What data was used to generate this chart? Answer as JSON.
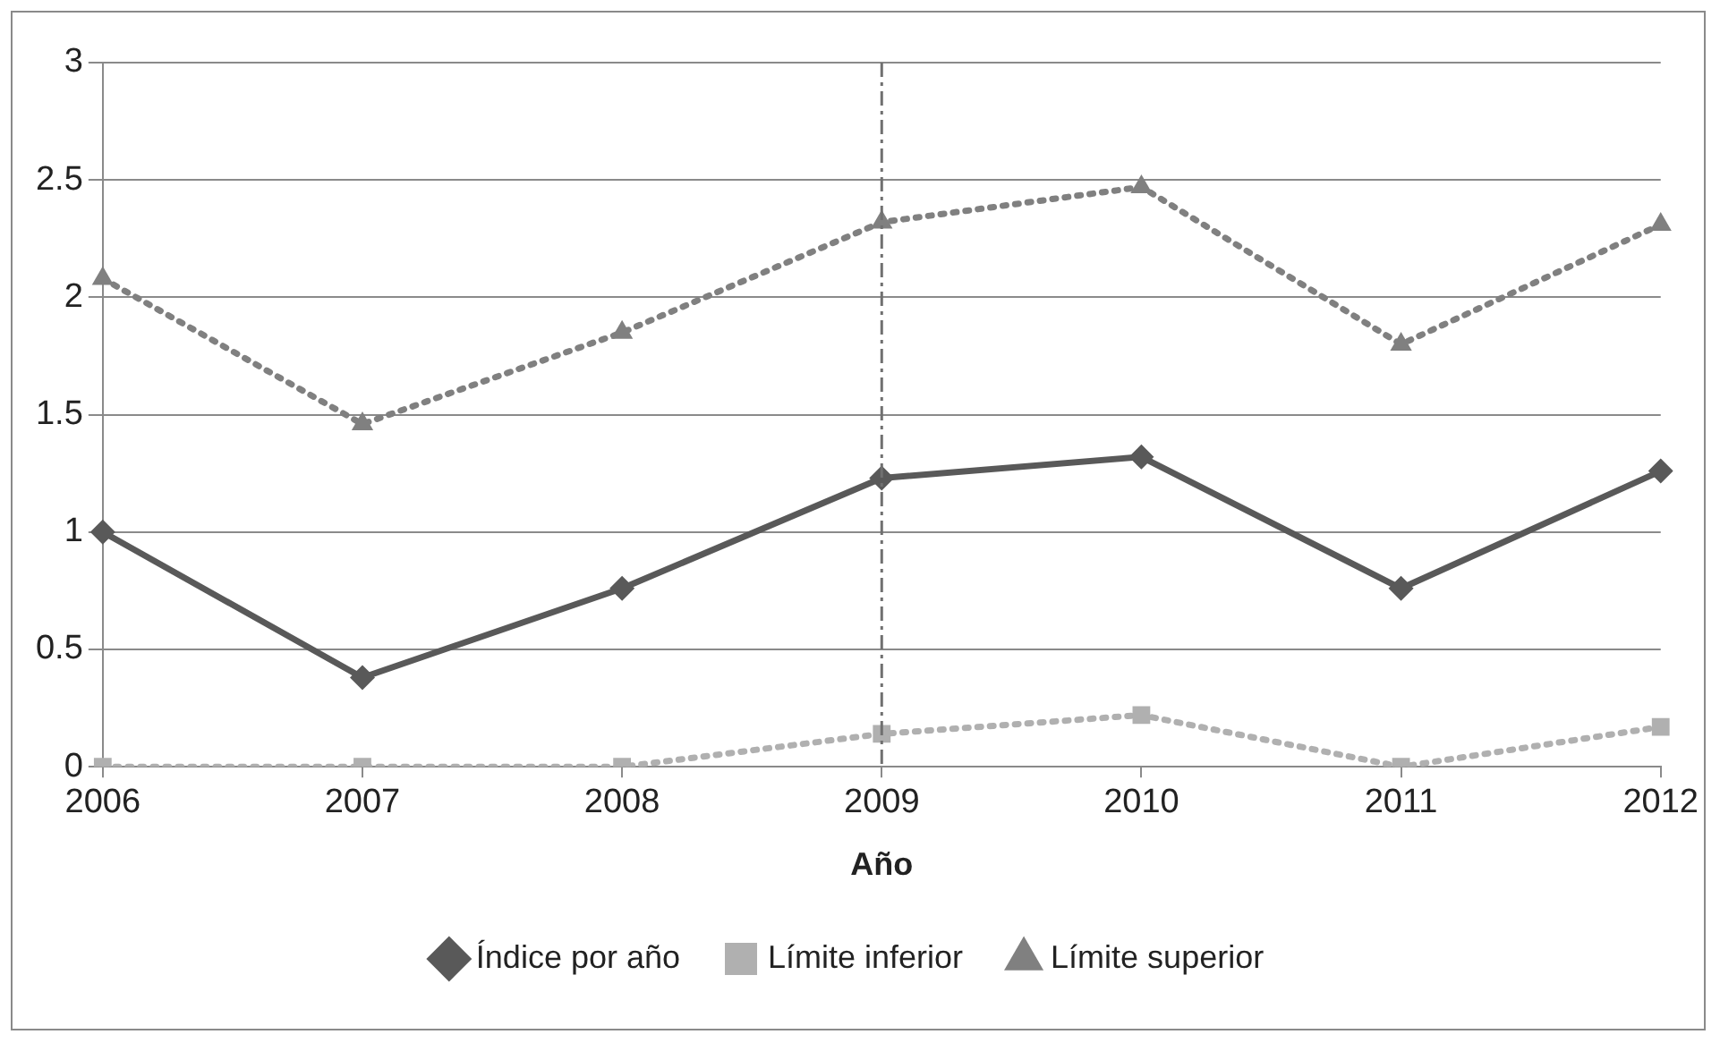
{
  "chart_data": {
    "type": "line",
    "xlabel": "Año",
    "categories": [
      "2006",
      "2007",
      "2008",
      "2009",
      "2010",
      "2011",
      "2012"
    ],
    "series": [
      {
        "name": "Índice por año",
        "color": "#595959",
        "marker": "diamond",
        "line_style": "solid",
        "values": [
          1.0,
          0.38,
          0.76,
          1.23,
          1.32,
          0.76,
          1.26
        ]
      },
      {
        "name": "Límite inferior",
        "color": "#b0b0b0",
        "marker": "square",
        "line_style": "dotted",
        "values": [
          0,
          0,
          0,
          0.14,
          0.22,
          0,
          0.17
        ]
      },
      {
        "name": "Límite superior",
        "color": "#808080",
        "marker": "triangle",
        "line_style": "dotted",
        "values": [
          2.08,
          1.46,
          1.85,
          2.32,
          2.47,
          1.8,
          2.31
        ]
      }
    ],
    "ylim": [
      0,
      3
    ],
    "yticks": [
      0,
      0.5,
      1,
      1.5,
      2,
      2.5,
      3
    ],
    "grid": "y",
    "legend": "bottom",
    "ref_lines": [
      {
        "axis": "x",
        "value": "2009",
        "color": "#707070",
        "line_style": "dashed"
      }
    ]
  }
}
